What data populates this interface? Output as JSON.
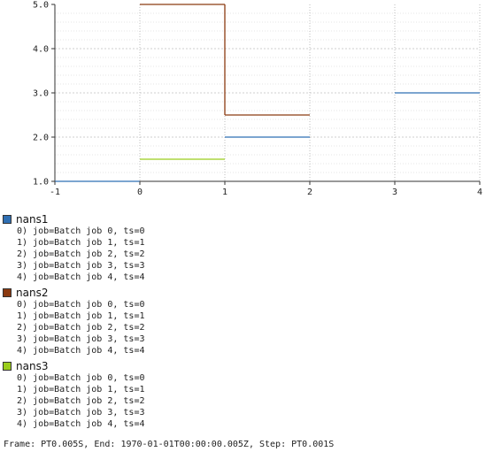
{
  "chart_data": {
    "type": "line",
    "step": "post",
    "xlim": [
      -1,
      4
    ],
    "ylim": [
      1.0,
      5.0
    ],
    "x_ticks": [
      -1,
      0,
      1,
      2,
      3,
      4
    ],
    "x_tick_labels": [
      "-1",
      "0",
      "1",
      "2",
      "3",
      "4"
    ],
    "y_ticks": [
      1.0,
      2.0,
      3.0,
      4.0,
      5.0
    ],
    "y_tick_labels": [
      "1.0",
      "2.0",
      "3.0",
      "4.0",
      "5.0"
    ],
    "grid": true,
    "legend_placement": "bottom",
    "series": [
      {
        "name": "nans1",
        "color": "#2f6fb3",
        "segments": [
          {
            "x0": -1,
            "x1": 0,
            "y": 1.0
          },
          {
            "x0": 1,
            "x1": 2,
            "y": 2.0
          },
          {
            "x0": 3,
            "x1": 4,
            "y": 3.0
          }
        ],
        "items": [
          "0) job=Batch job 0, ts=0",
          "1) job=Batch job 1, ts=1",
          "2) job=Batch job 2, ts=2",
          "3) job=Batch job 3, ts=3",
          "4) job=Batch job 4, ts=4"
        ]
      },
      {
        "name": "nans2",
        "color": "#8b3a10",
        "segments": [
          {
            "x0": 0,
            "x1": 1,
            "y": 5.0
          },
          {
            "x0": 1,
            "x1": 2,
            "y": 2.5
          }
        ],
        "connect": [
          [
            1,
            5.0,
            2.5
          ]
        ],
        "items": [
          "0) job=Batch job 0, ts=0",
          "1) job=Batch job 1, ts=1",
          "2) job=Batch job 2, ts=2",
          "3) job=Batch job 3, ts=3",
          "4) job=Batch job 4, ts=4"
        ]
      },
      {
        "name": "nans3",
        "color": "#9acd1c",
        "segments": [
          {
            "x0": 0,
            "x1": 1,
            "y": 1.5
          }
        ],
        "items": [
          "0) job=Batch job 0, ts=0",
          "1) job=Batch job 1, ts=1",
          "2) job=Batch job 2, ts=2",
          "3) job=Batch job 3, ts=3",
          "4) job=Batch job 4, ts=4"
        ]
      }
    ]
  },
  "footer": {
    "text": "Frame: PT0.005S, End: 1970-01-01T00:00:00.005Z, Step: PT0.001S"
  }
}
